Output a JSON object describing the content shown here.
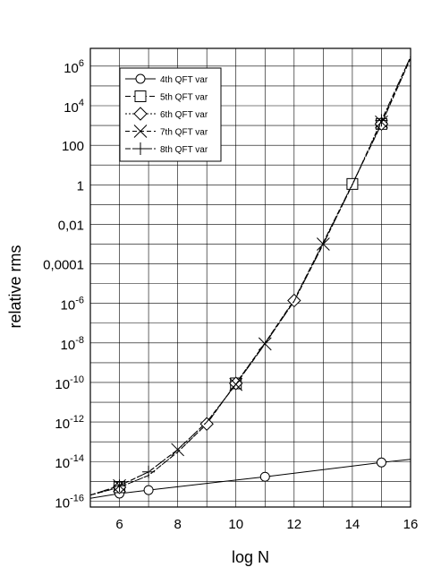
{
  "chart_data": {
    "type": "line",
    "xlabel": "log N",
    "ylabel": "relative rms",
    "xlim": [
      5,
      16
    ],
    "ylim_log10": [
      -16.3,
      6.9
    ],
    "yscale": "log",
    "grid": true,
    "legend_placement": "top-left",
    "x_ticks": [
      {
        "value": 6,
        "label": "6"
      },
      {
        "value": 8,
        "label": "8"
      },
      {
        "value": 10,
        "label": "10"
      },
      {
        "value": 12,
        "label": "12"
      },
      {
        "value": 14,
        "label": "14"
      },
      {
        "value": 16,
        "label": "16"
      }
    ],
    "y_ticks": [
      {
        "log": -16,
        "base": "10",
        "exp": "-16"
      },
      {
        "log": -14,
        "base": "10",
        "exp": "-14"
      },
      {
        "log": -12,
        "base": "10",
        "exp": "-12"
      },
      {
        "log": -10,
        "base": "10",
        "exp": "-10"
      },
      {
        "log": -8,
        "base": "10",
        "exp": "-8"
      },
      {
        "log": -6,
        "base": "10",
        "exp": "-6"
      },
      {
        "log": -4,
        "text": "0,0001"
      },
      {
        "log": -2,
        "text": "0,01"
      },
      {
        "log": 0,
        "text": "1"
      },
      {
        "log": 2,
        "text": "100"
      },
      {
        "log": 4,
        "base": "10",
        "exp": "4"
      },
      {
        "log": 6,
        "base": "10",
        "exp": "6"
      }
    ],
    "series": [
      {
        "name": "4th QFT var",
        "marker": "circle",
        "dash": "",
        "points": [
          [
            5.0,
            1.4e-16
          ],
          [
            6.0,
            2.4e-16
          ],
          [
            7.0,
            3.6e-16
          ],
          [
            11.0,
            1.7e-15
          ],
          [
            15.0,
            9e-15
          ],
          [
            16.0,
            1.3e-14
          ]
        ],
        "markers": [
          [
            6.0,
            2.4e-16
          ],
          [
            7.0,
            3.6e-16
          ],
          [
            11.0,
            1.7e-15
          ],
          [
            15.0,
            9e-15
          ]
        ]
      },
      {
        "name": "5th QFT var",
        "marker": "square",
        "dash": "6,3",
        "points": [
          [
            5.0,
            2e-16
          ],
          [
            6.0,
            5e-16
          ],
          [
            7.0,
            2e-15
          ],
          [
            8.0,
            3e-14
          ],
          [
            9.0,
            8e-13
          ],
          [
            10.0,
            9e-11
          ],
          [
            11.0,
            1e-08
          ],
          [
            12.0,
            1.5e-06
          ],
          [
            13.0,
            0.0012
          ],
          [
            14.0,
            1.1
          ],
          [
            15.0,
            1200.0
          ],
          [
            16.0,
            2500000.0
          ]
        ],
        "markers": [
          [
            6.0,
            5e-16
          ],
          [
            10.0,
            9e-11
          ],
          [
            14.0,
            1.1
          ],
          [
            15.0,
            1200.0
          ]
        ]
      },
      {
        "name": "6th QFT var",
        "marker": "diamond",
        "dash": "2,2",
        "points": [
          [
            5.0,
            2e-16
          ],
          [
            6.0,
            5e-16
          ],
          [
            7.0,
            2e-15
          ],
          [
            8.0,
            3e-14
          ],
          [
            9.0,
            8e-13
          ],
          [
            10.0,
            9e-11
          ],
          [
            11.0,
            1e-08
          ],
          [
            12.0,
            1.4e-06
          ],
          [
            13.0,
            0.0012
          ],
          [
            14.0,
            1.1
          ],
          [
            15.0,
            1200.0
          ],
          [
            16.0,
            2500000.0
          ]
        ],
        "markers": [
          [
            6.0,
            5e-16
          ],
          [
            9.0,
            8e-13
          ],
          [
            10.0,
            9e-11
          ],
          [
            12.0,
            1.4e-06
          ],
          [
            15.0,
            1200.0
          ]
        ]
      },
      {
        "name": "7th QFT var",
        "marker": "x",
        "dash": "5,3",
        "points": [
          [
            5.0,
            2e-16
          ],
          [
            6.0,
            6e-16
          ],
          [
            7.0,
            3e-15
          ],
          [
            8.0,
            4e-14
          ],
          [
            9.0,
            1e-12
          ],
          [
            10.0,
            8e-11
          ],
          [
            11.0,
            9e-09
          ],
          [
            12.0,
            1.3e-06
          ],
          [
            13.0,
            0.001
          ],
          [
            14.0,
            1.0
          ],
          [
            15.0,
            1500.0
          ],
          [
            16.0,
            3000000.0
          ]
        ],
        "markers": [
          [
            6.0,
            6e-16
          ],
          [
            8.0,
            4e-14
          ],
          [
            10.0,
            8e-11
          ],
          [
            11.0,
            9e-09
          ],
          [
            13.0,
            0.001
          ],
          [
            15.0,
            1500.0
          ]
        ]
      },
      {
        "name": "8th QFT var",
        "marker": "plus",
        "dash": "6,2,2,2",
        "points": [
          [
            5.0,
            2e-16
          ],
          [
            6.0,
            6e-16
          ],
          [
            7.0,
            3e-15
          ],
          [
            8.0,
            4e-14
          ],
          [
            9.0,
            1e-12
          ],
          [
            10.0,
            8e-11
          ],
          [
            11.0,
            9e-09
          ],
          [
            12.0,
            1.3e-06
          ],
          [
            13.0,
            0.001
          ],
          [
            14.0,
            1.0
          ],
          [
            15.0,
            1800.0
          ],
          [
            16.0,
            3000000.0
          ]
        ],
        "markers": [
          [
            6.0,
            6e-16
          ],
          [
            7.0,
            3e-15
          ],
          [
            15.0,
            1800.0
          ]
        ]
      }
    ]
  }
}
